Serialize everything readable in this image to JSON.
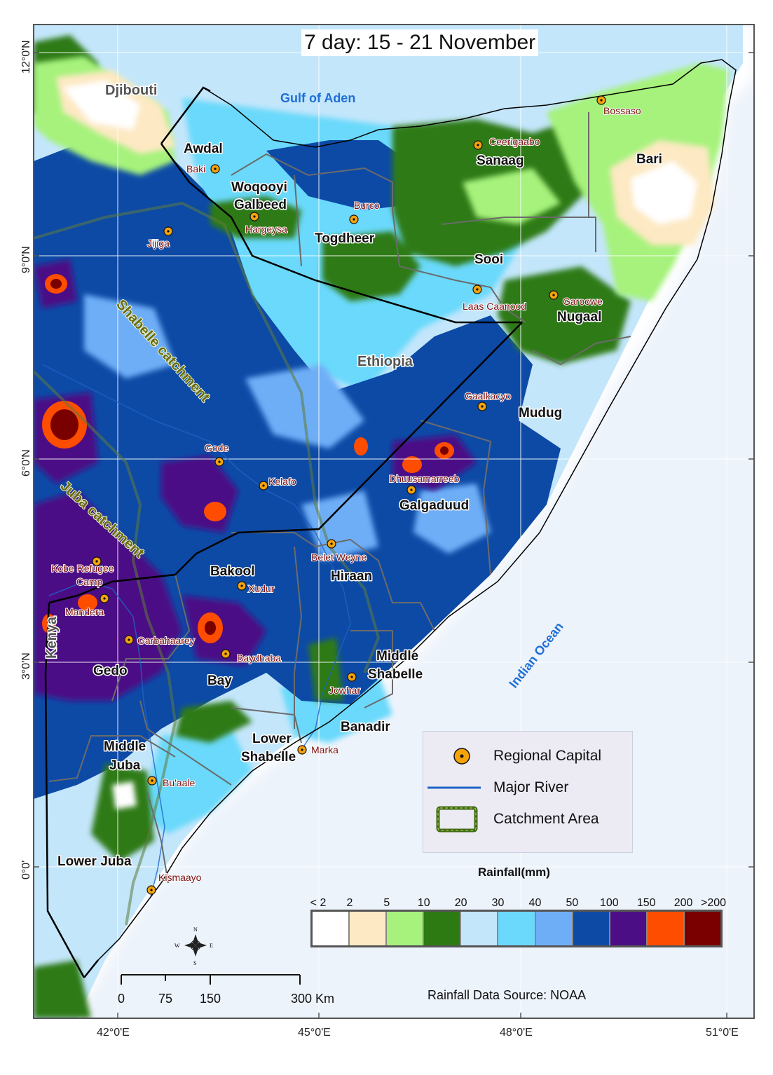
{
  "title": "7 day:  15 - 21 November",
  "water_labels": {
    "gulf": "Gulf of Aden",
    "ocean": "Indian Ocean"
  },
  "countries": {
    "djibouti": "Djibouti",
    "ethiopia": "Ethiopia",
    "kenya": "Kenya"
  },
  "catchments": {
    "shabelle": "Shabelle catchment",
    "juba": "Juba catchment"
  },
  "regions": {
    "awdal": "Awdal",
    "woqooyi_1": "Woqooyi",
    "woqooyi_2": "Galbeed",
    "togdheer": "Togdheer",
    "sanaag": "Sanaag",
    "bari": "Bari",
    "sooi": "Sooi",
    "nugaal": "Nugaal",
    "mudug": "Mudug",
    "galgaduud": "Galgaduud",
    "bakool": "Bakool",
    "hiraan": "Hiraan",
    "middle_shabelle_1": "Middle",
    "middle_shabelle_2": "Shabelle",
    "gedo": "Gedo",
    "bay": "Bay",
    "banadir": "Banadir",
    "lower_shabelle_1": "Lower",
    "lower_shabelle_2": "Shabelle",
    "middle_juba_1": "Middle",
    "middle_juba_2": "Juba",
    "lower_juba": "Lower Juba"
  },
  "cities": {
    "bossaso": "Bossaso",
    "ceerigaabo": "Ceerigaabo",
    "baki": "Baki",
    "burco": "Burco",
    "hargeysa": "Hargeysa",
    "jijiga": "Jijiga",
    "laas_caanood": "Laas Caanood",
    "garoowe": "Garoowe",
    "gaalkacyo": "Gaalkacyo",
    "gode": "Gode",
    "kelafo": "Kelafo",
    "dhuusamarreeb": "Dhuusamarreeb",
    "belet_weyne": "Belet Weyne",
    "kobe_1": "Kobe Refugee",
    "kobe_2": "Camp",
    "xudur": "Xudur",
    "mandera": "Mandera",
    "garbahaarey": "Garbahaarey",
    "baydhaba": "Baydhaba",
    "jowhar": "Jowhar",
    "marka": "Marka",
    "buaale": "Bu'aale",
    "kismaayo": "Kismaayo"
  },
  "axes": {
    "lat": [
      "12°0'N",
      "9°0'N",
      "6°0'N",
      "3°0'N",
      "0°0'"
    ],
    "lon": [
      "42°0'E",
      "45°0'E",
      "48°0'E",
      "51°0'E"
    ]
  },
  "legend": {
    "capital": "Regional Capital",
    "river": "Major River",
    "catchment": "Catchment Area"
  },
  "rainfall": {
    "title": "Rainfall(mm)",
    "ticks": [
      "< 2",
      "2",
      "5",
      "10",
      "20",
      "30",
      "40",
      "50",
      "100",
      "150",
      "200",
      ">200"
    ],
    "colors": [
      "#ffffff",
      "#fde9c3",
      "#a6f27c",
      "#2d7a12",
      "#c3e6fb",
      "#6bd9fb",
      "#6eaef7",
      "#0d4aa6",
      "#4b0e85",
      "#ff4d00",
      "#7a0000"
    ]
  },
  "scalebar": {
    "ticks": [
      "0",
      "75",
      "150",
      "300 Km"
    ]
  },
  "north_arrow": {
    "n": "N",
    "s": "S",
    "e": "E",
    "w": "W"
  },
  "source": "Rainfall Data Source: NOAA"
}
